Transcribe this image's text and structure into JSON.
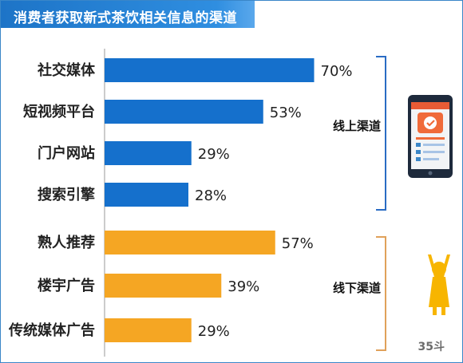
{
  "title": "消费者获取新式茶饮相关信息的渠道",
  "colors": {
    "online": "#1570cc",
    "offline": "#f5a623",
    "bracket_online": "#2a6cc4",
    "bracket_offline": "#e0a15a",
    "title_bg": "#1d74c7"
  },
  "chart_data": {
    "type": "bar",
    "orientation": "horizontal",
    "title": "消费者获取新式茶饮相关信息的渠道",
    "categories": [
      "社交媒体",
      "短视频平台",
      "门户网站",
      "搜索引擎",
      "熟人推荐",
      "楼宇广告",
      "传统媒体广告"
    ],
    "values": [
      70,
      53,
      29,
      28,
      57,
      39,
      29
    ],
    "value_labels": [
      "70%",
      "53%",
      "29%",
      "28%",
      "57%",
      "39%",
      "29%"
    ],
    "groups": [
      {
        "name": "线上渠道",
        "members": [
          0,
          1,
          2,
          3
        ],
        "color": "#1570cc"
      },
      {
        "name": "线下渠道",
        "members": [
          4,
          5,
          6
        ],
        "color": "#f5a623"
      }
    ],
    "xlim": [
      0,
      100
    ],
    "grid": false,
    "legend": "none"
  },
  "icons": [
    "phone-checklist-icon",
    "person-arms-up-icon"
  ],
  "watermark": "35斗"
}
